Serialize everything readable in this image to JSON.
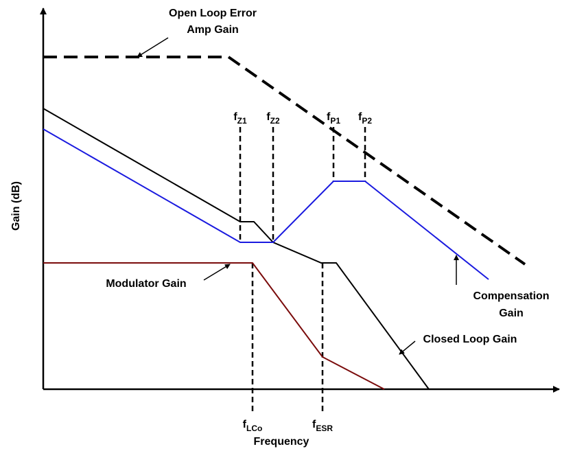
{
  "axes": {
    "y_label": "Gain (dB)",
    "x_label": "Frequency"
  },
  "curves": {
    "open_loop": [
      "Open Loop Error",
      "Amp Gain"
    ],
    "modulator": "Modulator Gain",
    "compensation": [
      "Compensation",
      "Gain"
    ],
    "closed_loop": "Closed Loop  Gain"
  },
  "markers": [
    {
      "base": "f",
      "sub": "Z1"
    },
    {
      "base": "f",
      "sub": "Z2"
    },
    {
      "base": "f",
      "sub": "P1"
    },
    {
      "base": "f",
      "sub": "P2"
    },
    {
      "base": "f",
      "sub": "LCo"
    },
    {
      "base": "f",
      "sub": "ESR"
    }
  ]
}
